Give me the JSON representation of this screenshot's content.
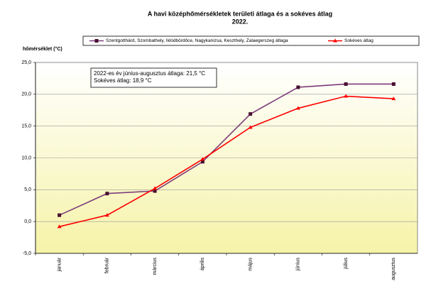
{
  "chart_data": {
    "type": "line",
    "title": "A havi középhőmérsékletek területi átlaga és a sokéves átlag",
    "subtitle": "2022.",
    "y_label": "hőmérséklet (°C)",
    "annotations": [
      "2022-es év június-augusztus  átlaga: 21,5 °C",
      "Sokéves átlag: 18,9 °C"
    ],
    "categories": [
      "január",
      "február",
      "március",
      "április",
      "május",
      "június",
      "július",
      "augusztus"
    ],
    "series": [
      {
        "name": "Szentgotthárd, Szombathely, Iklódbördőce, Nagykanizsa, Keszthely, Zalaegerszeg átlaga",
        "color": "#7b3b7b",
        "marker": "square",
        "values": [
          1.0,
          4.4,
          4.8,
          9.4,
          16.9,
          21.1,
          21.6,
          21.6
        ]
      },
      {
        "name": "Sokéves átlag",
        "color": "#ff0000",
        "marker": "triangle",
        "values": [
          -0.8,
          1.0,
          5.2,
          9.8,
          14.8,
          17.8,
          19.7,
          19.3
        ]
      }
    ],
    "ylim": [
      -5,
      25
    ],
    "yticks": [
      {
        "value": -5,
        "label": "-5,0"
      },
      {
        "value": 0,
        "label": "0,0"
      },
      {
        "value": 5,
        "label": "5,0"
      },
      {
        "value": 10,
        "label": "10,0"
      },
      {
        "value": 15,
        "label": "15,0"
      },
      {
        "value": 20,
        "label": "20,0"
      },
      {
        "value": 25,
        "label": "25,0"
      }
    ],
    "grid": true,
    "legend": "top"
  }
}
